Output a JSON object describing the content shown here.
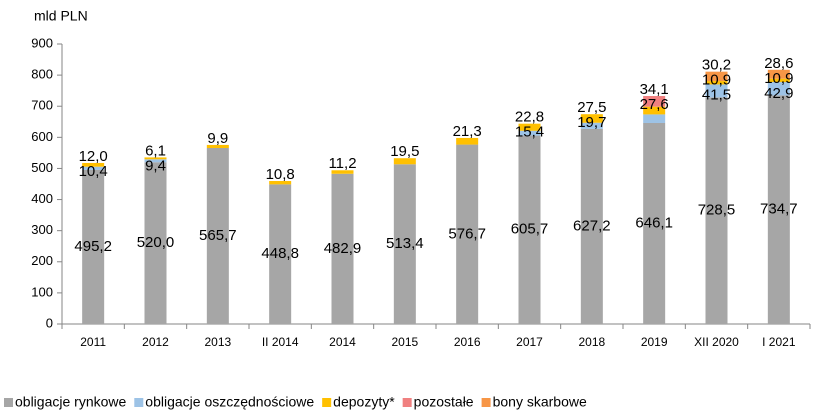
{
  "chart_data": {
    "type": "stacked_bar",
    "y_label": "mld PLN",
    "categories": [
      "2011",
      "2012",
      "2013",
      "II 2014",
      "2014",
      "2015",
      "2016",
      "2017",
      "2018",
      "2019",
      "XII 2020",
      "I 2021"
    ],
    "series": [
      {
        "name": "obligacje rynkowe",
        "color": "#a6a6a6",
        "values": [
          495.2,
          520.0,
          565.7,
          448.8,
          482.9,
          513.4,
          576.7,
          605.7,
          627.2,
          646.1,
          728.5,
          734.7
        ],
        "value_labels": [
          "495,2",
          "520,0",
          "565,7",
          "448,8",
          "482,9",
          "513,4",
          "576,7",
          "605,7",
          "627,2",
          "646,1",
          "728,5",
          "734,7"
        ]
      },
      {
        "name": "obligacje oszczędnościowe",
        "color": "#9dc3e6",
        "values": [
          10.4,
          9.4,
          null,
          null,
          null,
          null,
          null,
          15.4,
          19.7,
          27.6,
          41.5,
          42.9
        ],
        "value_labels": [
          "10,4",
          "9,4",
          null,
          null,
          null,
          null,
          null,
          "15,4",
          "19,7",
          "27,6",
          "41,5",
          "42,9"
        ]
      },
      {
        "name": "depozyty*",
        "color": "#ffc000",
        "values": [
          12.0,
          6.1,
          9.9,
          10.8,
          11.2,
          19.5,
          21.3,
          22.8,
          27.5,
          25,
          10.9,
          10.9
        ],
        "value_labels": [
          "12,0",
          "6,1",
          "9,9",
          "10,8",
          "11,2",
          "19,5",
          "21,3",
          "22,8",
          "27,5",
          null,
          "10,9",
          "10,9"
        ]
      },
      {
        "name": "pozostałe",
        "color": "#f08080",
        "values": [
          null,
          null,
          null,
          null,
          null,
          null,
          null,
          null,
          null,
          34.1,
          null,
          null
        ],
        "value_labels": [
          null,
          null,
          null,
          null,
          null,
          null,
          null,
          null,
          null,
          "34,1",
          null,
          null
        ]
      },
      {
        "name": "bony skarbowe",
        "color": "#f79646",
        "values": [
          null,
          null,
          null,
          null,
          null,
          null,
          null,
          null,
          null,
          null,
          30.2,
          28.6
        ],
        "value_labels": [
          null,
          null,
          null,
          null,
          null,
          null,
          null,
          null,
          null,
          null,
          "30,2",
          "28,6"
        ]
      }
    ],
    "ylim": [
      0,
      900
    ],
    "yticks": [
      0,
      100,
      200,
      300,
      400,
      500,
      600,
      700,
      800,
      900
    ],
    "grid": false
  }
}
